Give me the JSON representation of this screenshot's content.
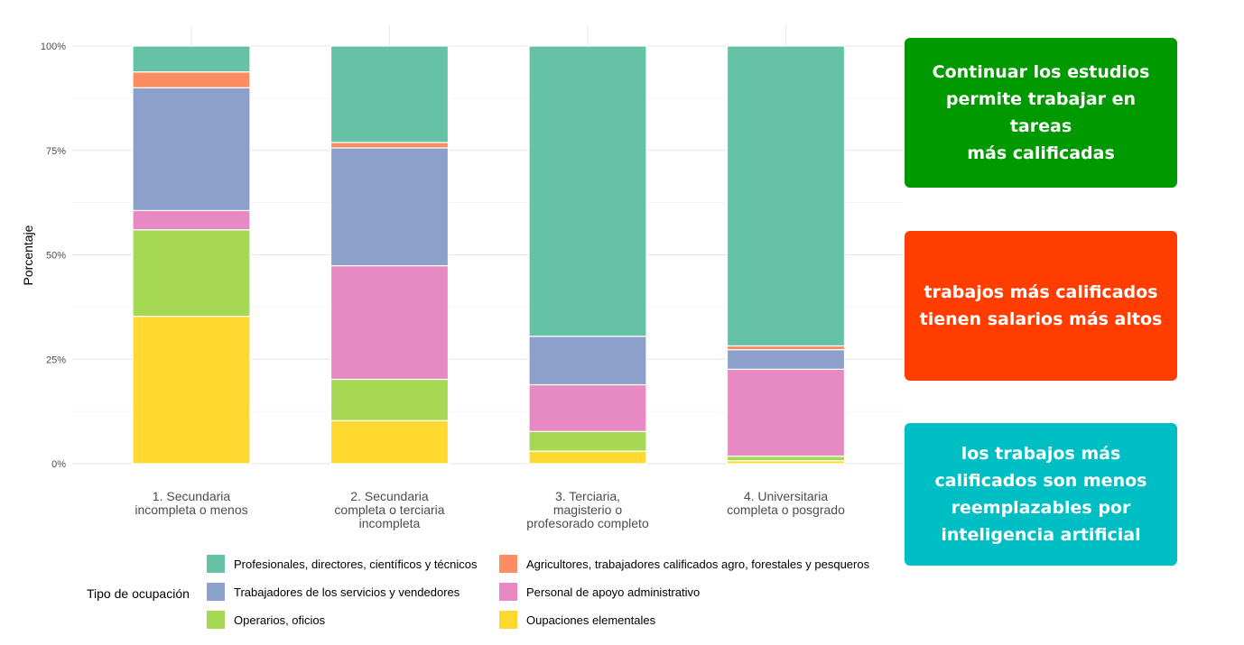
{
  "chart_data": {
    "type": "bar",
    "stacked": true,
    "ylabel": "Porcentaje",
    "xlabel": "",
    "ylim": [
      0,
      100
    ],
    "yticks": [
      "0%",
      "25%",
      "50%",
      "75%",
      "100%"
    ],
    "ytick_values": [
      0,
      25,
      50,
      75,
      100
    ],
    "grid": true,
    "categories": [
      "1. Secundaria\nincompleta o menos",
      "2. Secundaria\ncompleta o terciaria\nincompleta",
      "3. Terciaria,\nmagisterio o\nprofesorado completo",
      "4. Universitaria\ncompleta o posgrado"
    ],
    "series": [
      {
        "name": " Oupaciones elementales",
        "color": "#FFD92F",
        "values": [
          35.3,
          10.3,
          3.0,
          0.7
        ]
      },
      {
        "name": "Operarios, oficios",
        "color": "#A6D854",
        "values": [
          20.7,
          9.9,
          4.7,
          1.1
        ]
      },
      {
        "name": "Personal de apoyo administrativo",
        "color": "#E78AC3",
        "values": [
          4.6,
          27.2,
          11.2,
          20.8
        ]
      },
      {
        "name": "Trabajadores de los servicios y vendedores",
        "color": "#8DA0CB",
        "values": [
          29.4,
          28.2,
          11.6,
          4.7
        ]
      },
      {
        "name": "Agricultores, trabajadores calificados agro, forestales y pesqueros",
        "color": "#FC8D62",
        "values": [
          3.8,
          1.3,
          0.0,
          0.9
        ]
      },
      {
        "name": "Profesionales, directores, científicos y técnicos",
        "color": "#66C2A5",
        "values": [
          6.2,
          23.1,
          69.5,
          71.8
        ]
      }
    ],
    "legend": {
      "title": "Tipo de ocupación",
      "position": "bottom",
      "items": [
        {
          "label": "Profesionales, directores, científicos y técnicos",
          "color": "#66C2A5"
        },
        {
          "label": "Agricultores, trabajadores calificados agro, forestales y pesqueros",
          "color": "#FC8D62"
        },
        {
          "label": "Trabajadores de los servicios y vendedores",
          "color": "#8DA0CB"
        },
        {
          "label": "Personal de apoyo administrativo",
          "color": "#E78AC3"
        },
        {
          "label": "Operarios, oficios",
          "color": "#A6D854"
        },
        {
          "label": "Oupaciones elementales",
          "color": "#FFD92F"
        }
      ]
    }
  },
  "callouts": [
    {
      "lines": [
        "Continuar los estudios",
        "permite trabajar en  tareas",
        "más calificadas"
      ],
      "color": "#009900"
    },
    {
      "lines": [
        "trabajos más  calificados",
        "tienen  salarios más altos"
      ],
      "color": "#FF3D00"
    },
    {
      "lines": [
        "los trabajos más",
        "calificados son menos",
        "reemplazables por",
        "inteligencia artificial"
      ],
      "color": "#00BFC4"
    }
  ]
}
